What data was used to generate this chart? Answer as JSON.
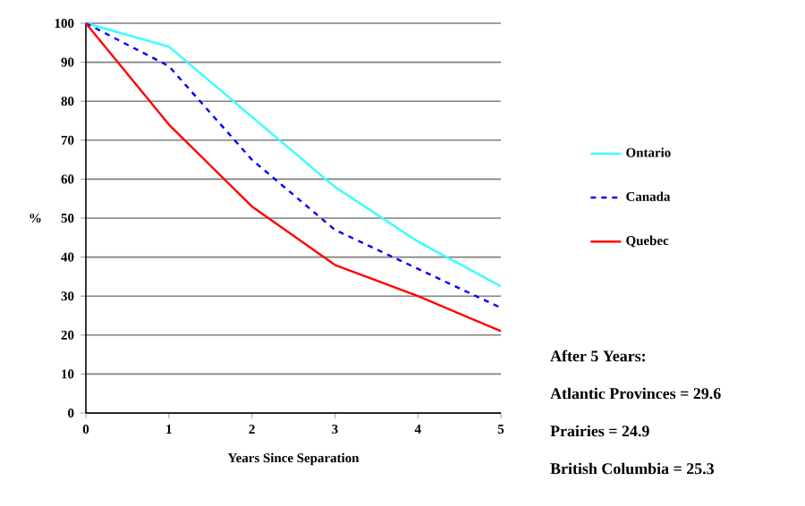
{
  "chart_data": {
    "type": "line",
    "xlabel": "Years Since Separation",
    "ylabel": "%",
    "x": [
      0,
      1,
      2,
      3,
      4,
      5
    ],
    "series": [
      {
        "name": "Ontario",
        "color": "#33ffff",
        "values": [
          100,
          94,
          76,
          58,
          44,
          32.5
        ]
      },
      {
        "name": "Canada",
        "color": "#0000ff",
        "line_style": "dashed",
        "values": [
          100,
          89,
          65,
          47,
          37,
          27
        ]
      },
      {
        "name": "Quebec",
        "color": "#ff0000",
        "values": [
          100,
          74,
          53,
          38,
          30,
          21
        ]
      }
    ],
    "xlim": [
      0,
      5
    ],
    "xticks": [
      0,
      1,
      2,
      3,
      4,
      5
    ],
    "ylim": [
      0,
      100
    ],
    "yticks": [
      0,
      10,
      20,
      30,
      40,
      50,
      60,
      70,
      80,
      90,
      100
    ],
    "grid": "y",
    "legend": "right",
    "annotations": [
      "After 5 Years:",
      "Atlantic Provinces = 29.6",
      "Prairies = 24.9",
      "British Columbia = 25.3"
    ]
  }
}
